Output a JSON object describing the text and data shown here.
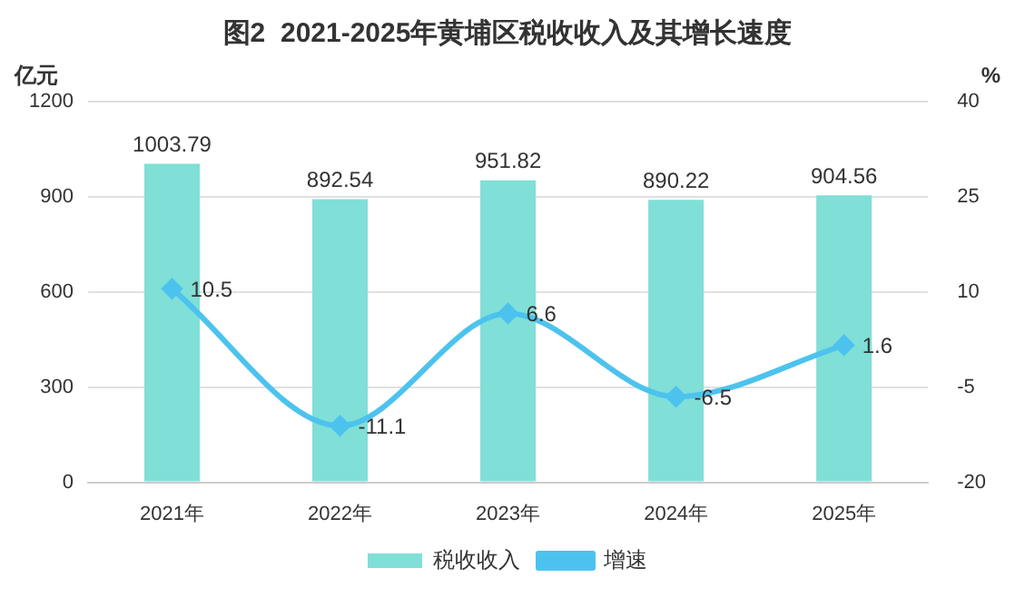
{
  "chart_data": {
    "type": "bar",
    "title": "图2  2021-2025年黄埔区税收收入及其增长速度",
    "ylabel": "亿元",
    "y2label": "%",
    "categories": [
      "2021年",
      "2022年",
      "2023年",
      "2024年",
      "2025年"
    ],
    "series": [
      {
        "name": "税收收入",
        "color": "#80dfd7",
        "values": [
          1003.79,
          892.54,
          951.82,
          890.22,
          904.56
        ]
      },
      {
        "name": "增速",
        "type": "line",
        "axis": "y2",
        "color": "#4cc3ee",
        "marker": "diamond",
        "values": [
          10.5,
          -11.1,
          6.6,
          -6.5,
          1.6
        ]
      }
    ],
    "ylim": [
      0,
      1200
    ],
    "yticks": [
      0,
      300,
      600,
      900,
      1200
    ],
    "y2lim": [
      -20,
      40
    ],
    "y2ticks": [
      -20,
      -5,
      10,
      25,
      40
    ],
    "grid": "y",
    "legend": "bottom",
    "data_labels": true
  }
}
